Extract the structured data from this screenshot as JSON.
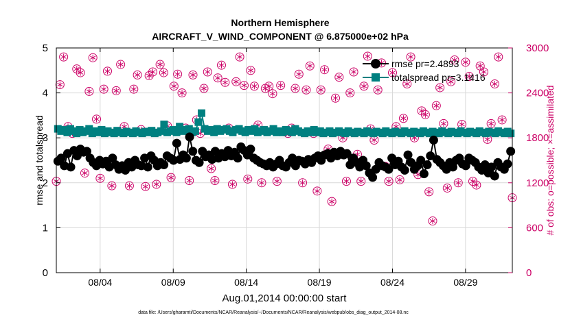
{
  "chart_data": {
    "type": "line",
    "title_line1": "Northern Hemisphere",
    "title_line2": "AIRCRAFT_V_WIND_COMPONENT @ 6.875000e+02 hPa",
    "xlabel": "Aug.01,2014 00:00:00 start",
    "ylabel_left": "rmse and totalspread",
    "ylabel_right": "# of obs: o=possible; ×=assimilated",
    "footnote": "data file: /Users/gharamti/Documents/NCAR/Reanalysis/~/Documents/NCAR/Reanalysis/webpub/obs_diag_output_2014-08.nc",
    "x_range_days": [
      0,
      31.2
    ],
    "ylim_left": [
      0,
      5
    ],
    "ylim_right": [
      0,
      3000
    ],
    "x_ticks": [
      {
        "day": 3,
        "label": "08/04"
      },
      {
        "day": 8,
        "label": "08/09"
      },
      {
        "day": 13,
        "label": "08/14"
      },
      {
        "day": 18,
        "label": "08/19"
      },
      {
        "day": 23,
        "label": "08/24"
      },
      {
        "day": 28,
        "label": "08/29"
      }
    ],
    "y_ticks_left": [
      "0",
      "1",
      "2",
      "3",
      "4",
      "5"
    ],
    "y_ticks_right": [
      "0",
      "600",
      "1200",
      "1800",
      "2400",
      "3000"
    ],
    "colors": {
      "rmse": "#000000",
      "spread": "#008080",
      "obs": "#cc0066",
      "grid": "#d9d9d9"
    },
    "series": [
      {
        "name": "rmse",
        "legend": "rmse pr=2.4893",
        "values": [
          2.48,
          2.55,
          2.38,
          2.65,
          2.35,
          2.72,
          2.6,
          2.75,
          2.68,
          2.7,
          2.55,
          2.45,
          2.38,
          2.5,
          2.42,
          2.48,
          2.35,
          2.55,
          2.4,
          2.3,
          2.38,
          2.28,
          2.45,
          2.35,
          2.5,
          2.4,
          2.38,
          2.55,
          2.35,
          2.6,
          2.5,
          2.38,
          2.45,
          2.4,
          2.6,
          2.55,
          2.5,
          2.88,
          2.52,
          2.62,
          2.55,
          3.02,
          2.7,
          2.5,
          2.45,
          2.7,
          2.58,
          2.62,
          2.52,
          2.7,
          2.55,
          2.65,
          2.58,
          2.72,
          2.6,
          2.68,
          2.55,
          2.8,
          2.72,
          2.62,
          2.75,
          2.55,
          2.5,
          2.45,
          2.42,
          2.38,
          2.45,
          2.35,
          2.42,
          2.5,
          2.38,
          2.35,
          2.45,
          2.55,
          2.38,
          2.5,
          2.48,
          2.42,
          2.52,
          2.45,
          2.55,
          2.6,
          2.5,
          2.62,
          2.65,
          2.55,
          2.68,
          2.6,
          2.7,
          2.62,
          2.65,
          2.4,
          2.55,
          2.45,
          2.35,
          2.5,
          2.38,
          2.22,
          2.12,
          2.3,
          2.45,
          2.38,
          2.35,
          2.3,
          2.55,
          2.4,
          2.48,
          2.35,
          2.28,
          2.62,
          2.45,
          2.3,
          2.38,
          2.5,
          2.2,
          2.4,
          2.6,
          2.95,
          2.52,
          2.45,
          2.38,
          2.3,
          2.45,
          2.35,
          2.5,
          2.55,
          2.42,
          2.38,
          2.55,
          2.5,
          2.45,
          2.35,
          2.28,
          2.4,
          2.22,
          2.35,
          2.15,
          2.45,
          2.35,
          2.3,
          2.42,
          2.7
        ]
      },
      {
        "name": "totalspread",
        "legend": "totalspread pr=3.1416",
        "values": [
          3.2,
          3.15,
          3.18,
          3.12,
          3.2,
          3.15,
          3.1,
          3.18,
          3.12,
          3.15,
          3.2,
          3.1,
          3.15,
          3.12,
          3.18,
          3.1,
          3.15,
          3.12,
          3.1,
          3.16,
          3.12,
          3.1,
          3.14,
          3.12,
          3.1,
          3.15,
          3.12,
          3.1,
          3.14,
          3.12,
          3.16,
          3.1,
          3.12,
          3.15,
          3.3,
          3.12,
          3.15,
          3.18,
          3.12,
          3.25,
          3.15,
          3.18,
          3.2,
          3.12,
          3.15,
          3.35,
          3.55,
          3.2,
          3.15,
          3.18,
          3.12,
          3.2,
          3.15,
          3.18,
          3.2,
          3.15,
          3.12,
          3.18,
          3.2,
          3.15,
          3.12,
          3.18,
          3.15,
          3.2,
          3.12,
          3.15,
          3.18,
          3.12,
          3.15,
          3.2,
          3.12,
          3.15,
          3.12,
          3.18,
          3.15,
          3.12,
          3.2,
          3.15,
          3.12,
          3.1,
          3.15,
          3.12,
          3.18,
          3.12,
          3.15,
          3.1,
          3.12,
          3.15,
          3.1,
          3.12,
          3.15,
          3.12,
          3.1,
          3.15,
          3.12,
          3.1,
          3.14,
          3.12,
          3.1,
          3.15,
          3.12,
          3.1,
          3.14,
          3.12,
          3.1,
          3.15,
          3.12,
          3.1,
          3.14,
          3.12,
          3.1,
          3.15,
          3.12,
          3.1,
          3.14,
          3.12,
          3.1,
          3.15,
          3.12,
          3.1,
          3.14,
          3.12,
          3.1,
          3.15,
          3.12,
          3.1,
          3.14,
          3.12,
          3.1,
          3.15,
          3.12,
          3.1,
          3.14,
          3.12,
          3.1,
          3.15,
          3.12,
          3.1,
          3.14,
          3.12,
          3.1,
          3.15,
          3.12,
          3.1,
          3.14,
          3.1
        ]
      }
    ],
    "obs_points": [
      [
        0.0,
        1220
      ],
      [
        0.25,
        2510
      ],
      [
        0.5,
        2880
      ],
      [
        0.8,
        1950
      ],
      [
        1.1,
        1860
      ],
      [
        1.4,
        2720
      ],
      [
        1.65,
        2670
      ],
      [
        1.95,
        1330
      ],
      [
        2.25,
        2420
      ],
      [
        2.5,
        2870
      ],
      [
        2.75,
        2050
      ],
      [
        3.0,
        1260
      ],
      [
        3.25,
        2450
      ],
      [
        3.5,
        2690
      ],
      [
        3.8,
        1160
      ],
      [
        4.1,
        2430
      ],
      [
        4.4,
        2780
      ],
      [
        4.65,
        1950
      ],
      [
        5.0,
        1160
      ],
      [
        5.3,
        2450
      ],
      [
        5.55,
        2640
      ],
      [
        5.8,
        1910
      ],
      [
        6.1,
        1150
      ],
      [
        6.35,
        2630
      ],
      [
        6.6,
        2680
      ],
      [
        6.85,
        1180
      ],
      [
        7.1,
        2780
      ],
      [
        7.35,
        2670
      ],
      [
        7.6,
        1960
      ],
      [
        7.85,
        1270
      ],
      [
        8.05,
        2490
      ],
      [
        8.3,
        2650
      ],
      [
        8.6,
        2400
      ],
      [
        8.85,
        1930
      ],
      [
        9.1,
        1230
      ],
      [
        9.35,
        2640
      ],
      [
        9.6,
        2040
      ],
      [
        9.85,
        1860
      ],
      [
        10.1,
        2460
      ],
      [
        10.35,
        2680
      ],
      [
        10.6,
        1390
      ],
      [
        10.85,
        1230
      ],
      [
        11.05,
        2600
      ],
      [
        11.3,
        2770
      ],
      [
        11.55,
        2540
      ],
      [
        11.8,
        1930
      ],
      [
        12.05,
        1180
      ],
      [
        12.3,
        2550
      ],
      [
        12.55,
        2880
      ],
      [
        12.85,
        2500
      ],
      [
        13.1,
        1250
      ],
      [
        13.3,
        2700
      ],
      [
        13.55,
        2490
      ],
      [
        13.8,
        1970
      ],
      [
        14.05,
        1200
      ],
      [
        14.3,
        2460
      ],
      [
        14.55,
        2490
      ],
      [
        14.8,
        2390
      ],
      [
        15.1,
        1220
      ],
      [
        15.35,
        2500
      ],
      [
        15.6,
        1880
      ],
      [
        15.85,
        1860
      ],
      [
        16.1,
        1930
      ],
      [
        16.35,
        2460
      ],
      [
        16.6,
        2650
      ],
      [
        16.85,
        1200
      ],
      [
        17.1,
        2440
      ],
      [
        17.35,
        2760
      ],
      [
        17.6,
        1860
      ],
      [
        17.85,
        1090
      ],
      [
        18.1,
        2440
      ],
      [
        18.35,
        2710
      ],
      [
        18.6,
        1650
      ],
      [
        18.85,
        950
      ],
      [
        19.1,
        2330
      ],
      [
        19.35,
        2610
      ],
      [
        19.6,
        1800
      ],
      [
        19.85,
        1220
      ],
      [
        20.1,
        2400
      ],
      [
        20.35,
        2680
      ],
      [
        20.6,
        1580
      ],
      [
        20.85,
        1220
      ],
      [
        21.05,
        2490
      ],
      [
        21.3,
        2890
      ],
      [
        21.5,
        1920
      ],
      [
        21.75,
        1770
      ],
      [
        22.0,
        2440
      ],
      [
        22.25,
        2800
      ],
      [
        22.5,
        1420
      ],
      [
        22.75,
        1220
      ],
      [
        23.0,
        2670
      ],
      [
        23.25,
        1950
      ],
      [
        23.5,
        1240
      ],
      [
        23.75,
        2060
      ],
      [
        24.0,
        2520
      ],
      [
        24.25,
        2880
      ],
      [
        24.5,
        1800
      ],
      [
        24.75,
        1310
      ],
      [
        25.0,
        2160
      ],
      [
        25.25,
        2110
      ],
      [
        25.5,
        1080
      ],
      [
        25.75,
        690
      ],
      [
        26.0,
        2230
      ],
      [
        26.25,
        2470
      ],
      [
        26.5,
        1990
      ],
      [
        26.75,
        1130
      ],
      [
        27.0,
        2550
      ],
      [
        27.25,
        2840
      ],
      [
        27.5,
        1200
      ],
      [
        27.75,
        1980
      ],
      [
        28.0,
        2810
      ],
      [
        28.25,
        2620
      ],
      [
        28.5,
        1220
      ],
      [
        28.75,
        1170
      ],
      [
        29.0,
        2760
      ],
      [
        29.25,
        2680
      ],
      [
        29.5,
        1780
      ],
      [
        29.75,
        1990
      ],
      [
        30.0,
        2520
      ],
      [
        30.25,
        2880
      ],
      [
        30.5,
        2040
      ],
      [
        31.2,
        1000
      ]
    ]
  }
}
